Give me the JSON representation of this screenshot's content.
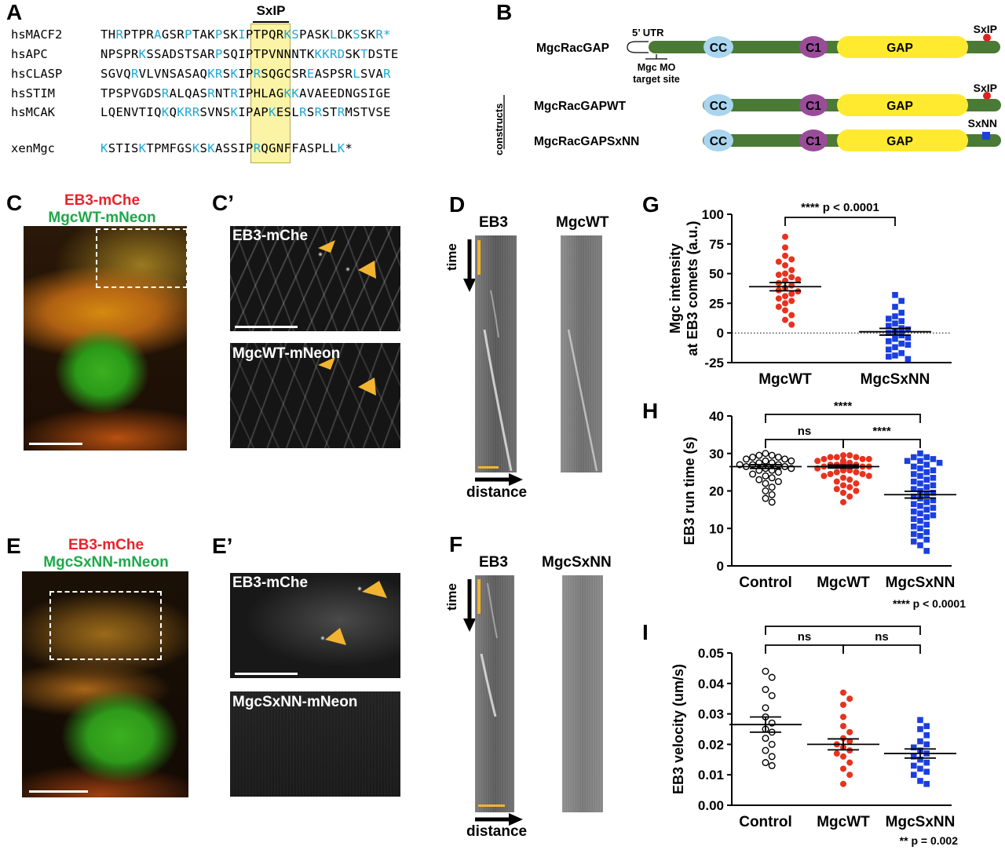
{
  "panels": {
    "A": "A",
    "B": "B",
    "C": "C",
    "C_prime": "C’",
    "D": "D",
    "E": "E",
    "E_prime": "E’",
    "F": "F",
    "G": "G",
    "H": "H",
    "I": "I"
  },
  "panel_a": {
    "motif_label": "SxIP",
    "sequences": [
      {
        "name": "hsMACF2",
        "seq": "THRPTPRAGSRPTAKPSKIPTPQRKSPASKLDKSSKR*",
        "blue": [
          2,
          7,
          11,
          15,
          18,
          24,
          25,
          30,
          33,
          36,
          37
        ]
      },
      {
        "name": "hsAPC",
        "seq": "NPSPRKSSADSTSARPSQIPTPVNNNTKKKRDSKTDSTE",
        "blue": [
          5,
          15,
          28,
          29,
          30,
          31,
          34
        ]
      },
      {
        "name": "hsCLASP",
        "seq": "SGVQRVLVNSASAQKRSKIPRSQGCSREASPSRLSVAR",
        "blue": [
          4,
          14,
          15,
          17,
          20,
          27,
          33,
          37
        ]
      },
      {
        "name": "hsSTIM",
        "seq": "TPSPVGDSRALQASRNTRIPHLAGKKAVAEEDNGSIGE",
        "blue": [
          8,
          14,
          17,
          24,
          25
        ]
      },
      {
        "name": "hsMCAK",
        "seq": "LQENVTIQKQKRRSVNSKIPAPKESLRSRSTRMSTVSE",
        "blue": [
          8,
          10,
          11,
          12,
          17,
          22,
          26,
          28,
          31
        ]
      },
      {
        "name": "xenMgc",
        "seq": "KSTISKTPMFGSKSKASSIPRQGNFFASPLLK*",
        "blue": [
          0,
          5,
          12,
          14,
          20,
          31
        ]
      }
    ]
  },
  "panel_b": {
    "rows": [
      {
        "name": "MgcRacGAP",
        "tag": "SxIP"
      },
      {
        "name": "MgcRacGAPWT",
        "tag": "SxIP"
      },
      {
        "name": "MgcRacGAPSxNN",
        "tag": "SxNN"
      }
    ],
    "domains": {
      "cc": "CC",
      "c1": "C1",
      "gap": "GAP"
    },
    "utr": "5’ UTR",
    "mo_line1": "Mgc MO",
    "mo_line2": "target site",
    "rescue_line1": "rescue",
    "rescue_line2": "constructs",
    "colors": {
      "backbone": "#4a7a35",
      "cc": "#a9d5ee",
      "c1": "#9a4c9a",
      "gap": "#ffea30",
      "sxip": "#e02020",
      "sxnn": "#1a3fe0"
    }
  },
  "panel_c": {
    "title1": "EB3-mChe",
    "title2": "MgcWT-mNeon",
    "title1_color": "#e8232b",
    "title2_color": "#1fa84a"
  },
  "panel_c_prime": {
    "top_label": "EB3-mChe",
    "bottom_label": "MgcWT-mNeon"
  },
  "panel_d": {
    "left_label": "EB3",
    "right_label": "MgcWT",
    "time": "time",
    "distance": "distance"
  },
  "panel_e": {
    "title1": "EB3-mChe",
    "title2": "MgcSxNN-mNeon"
  },
  "panel_e_prime": {
    "top_label": "EB3-mChe",
    "bottom_label": "MgcSxNN-mNeon"
  },
  "panel_f": {
    "left_label": "EB3",
    "right_label": "MgcSxNN",
    "time": "time",
    "distance": "distance"
  },
  "chart_data": [
    {
      "panel": "G",
      "type": "scatter",
      "ylabel_line1": "Mgc intensity",
      "ylabel_line2": "at EB3 comets (a.u.)",
      "ylim": [
        -25,
        100
      ],
      "yticks": [
        -25,
        0,
        25,
        50,
        75,
        100
      ],
      "categories": [
        "MgcWT",
        "MgcSxNN"
      ],
      "significance": "**** p < 0.0001",
      "series": [
        {
          "color": "#e8321e",
          "marker": "circle",
          "mean": 39,
          "sem": 3.5,
          "values": [
            81,
            72,
            65,
            62,
            60,
            57,
            53,
            50,
            49,
            47,
            45,
            44,
            42,
            40,
            38,
            36,
            35,
            33,
            31,
            29,
            27,
            25,
            22,
            19,
            15,
            11,
            7
          ]
        },
        {
          "color": "#1a3fe0",
          "marker": "square",
          "mean": 1,
          "sem": 2.8,
          "values": [
            32,
            27,
            22,
            17,
            14,
            12,
            10,
            8,
            6,
            4,
            3,
            1,
            0,
            -2,
            -4,
            -5,
            -7,
            -9,
            -10,
            -12,
            -14,
            -17,
            -19,
            -20,
            -22
          ]
        }
      ]
    },
    {
      "panel": "H",
      "type": "scatter",
      "ylabel": "EB3 run time (s)",
      "ylim": [
        0,
        40
      ],
      "yticks": [
        0,
        10,
        20,
        30,
        40
      ],
      "categories": [
        "Control",
        "MgcWT",
        "MgcSxNN"
      ],
      "significance_note": "**** p < 0.0001",
      "brackets": [
        {
          "from": 0,
          "to": 1,
          "label": "ns",
          "level": 1
        },
        {
          "from": 1,
          "to": 2,
          "label": "****",
          "level": 1
        },
        {
          "from": 0,
          "to": 2,
          "label": "****",
          "level": 2
        }
      ],
      "series": [
        {
          "color": "#000000",
          "marker": "open-circle",
          "mean": 26.5,
          "sem": 0.5,
          "values": [
            30,
            29.5,
            29.5,
            29,
            29,
            28.5,
            28.5,
            28,
            28,
            27.5,
            27.5,
            27,
            27,
            27,
            26.5,
            26.5,
            26,
            26,
            25.5,
            25.5,
            25,
            24.5,
            24,
            23.5,
            23,
            22.5,
            22,
            21,
            20,
            19,
            18,
            17
          ]
        },
        {
          "color": "#e8321e",
          "marker": "circle",
          "mean": 26.5,
          "sem": 0.4,
          "values": [
            29.5,
            29.5,
            29,
            29,
            29,
            28.5,
            28.5,
            28.5,
            28,
            28,
            28,
            27.5,
            27.5,
            27.5,
            27,
            27,
            27,
            27,
            26.5,
            26.5,
            26.5,
            26,
            26,
            26,
            25.5,
            25.5,
            25.5,
            25,
            25,
            24.5,
            24.5,
            24,
            24,
            23.5,
            23,
            22.5,
            22,
            21.5,
            21,
            20.5,
            20,
            19.5,
            18.5,
            17
          ]
        },
        {
          "color": "#1a3fe0",
          "marker": "square",
          "mean": 19,
          "sem": 0.9,
          "values": [
            30,
            29,
            29,
            28.5,
            28,
            28,
            27.5,
            27,
            26.5,
            26,
            25.5,
            25,
            24.5,
            24,
            23.5,
            23,
            22.5,
            22,
            21.5,
            21,
            20.5,
            20,
            19.5,
            19,
            18.5,
            18,
            17.5,
            17,
            16.5,
            16,
            15.5,
            15,
            14.5,
            14,
            13.5,
            13,
            12.5,
            12,
            11,
            10.5,
            10,
            9,
            8.5,
            8,
            7,
            6.5,
            5.5,
            4
          ]
        }
      ]
    },
    {
      "panel": "I",
      "type": "scatter",
      "ylabel": "EB3 velocity (um/s)",
      "ylim": [
        0,
        0.05
      ],
      "yticks": [
        0.0,
        0.01,
        0.02,
        0.03,
        0.04,
        0.05
      ],
      "categories": [
        "Control",
        "MgcWT",
        "MgcSxNN"
      ],
      "significance_note": "** p = 0.002",
      "brackets": [
        {
          "from": 0,
          "to": 1,
          "label": "ns",
          "level": 1
        },
        {
          "from": 1,
          "to": 2,
          "label": "ns",
          "level": 1
        },
        {
          "from": 0,
          "to": 2,
          "label": "**",
          "level": 2
        }
      ],
      "series": [
        {
          "color": "#000000",
          "marker": "open-circle",
          "mean": 0.0265,
          "sem": 0.0025,
          "values": [
            0.044,
            0.042,
            0.038,
            0.036,
            0.032,
            0.029,
            0.027,
            0.025,
            0.024,
            0.022,
            0.02,
            0.018,
            0.016,
            0.014,
            0.013
          ]
        },
        {
          "color": "#e8321e",
          "marker": "circle",
          "mean": 0.02,
          "sem": 0.0018,
          "values": [
            0.037,
            0.035,
            0.033,
            0.029,
            0.026,
            0.024,
            0.022,
            0.021,
            0.02,
            0.019,
            0.018,
            0.017,
            0.016,
            0.014,
            0.012,
            0.01,
            0.007
          ]
        },
        {
          "color": "#1a3fe0",
          "marker": "square",
          "mean": 0.017,
          "sem": 0.0015,
          "values": [
            0.028,
            0.026,
            0.025,
            0.023,
            0.021,
            0.02,
            0.019,
            0.018,
            0.017,
            0.016,
            0.015,
            0.014,
            0.013,
            0.012,
            0.011,
            0.01,
            0.008,
            0.007
          ]
        }
      ]
    }
  ]
}
